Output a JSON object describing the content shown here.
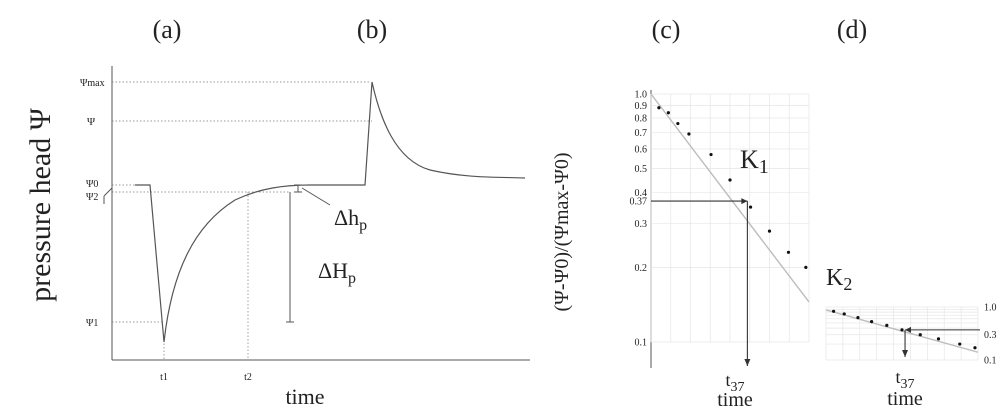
{
  "panel_labels": [
    "(a)",
    "(b)",
    "(c)",
    "(d)"
  ],
  "chart_data": [
    {
      "type": "line",
      "panel": "(a)-(b)",
      "ylabel": "pressure head Ψ",
      "xlabel": "time",
      "y_ticks": [
        "Ψmax",
        "Ψ",
        "Ψ0",
        "Ψ2",
        "Ψ1"
      ],
      "x_ticks": [
        "t1",
        "t2"
      ],
      "annotations": [
        "Δhp",
        "ΔHp"
      ]
    },
    {
      "type": "scatter",
      "panel": "(c)",
      "ylabel": "(Ψ-Ψ0)/(Ψmax-Ψ0)",
      "xlabel": "time",
      "y_scale": "log",
      "y_ticks": [
        1.0,
        0.9,
        0.8,
        0.7,
        0.6,
        0.5,
        0.4,
        0.37,
        0.3,
        0.2,
        0.1
      ],
      "ylim": [
        0.1,
        1.0
      ],
      "xlim": [
        0,
        100
      ],
      "label": "K1",
      "t_label": "t37",
      "marker_level": 0.37,
      "points": [
        {
          "x": 5,
          "y": 0.88
        },
        {
          "x": 11,
          "y": 0.84
        },
        {
          "x": 17,
          "y": 0.76
        },
        {
          "x": 24,
          "y": 0.69
        },
        {
          "x": 38,
          "y": 0.57
        },
        {
          "x": 50,
          "y": 0.45
        },
        {
          "x": 63,
          "y": 0.35
        },
        {
          "x": 75,
          "y": 0.28
        },
        {
          "x": 87,
          "y": 0.23
        },
        {
          "x": 98,
          "y": 0.2
        }
      ],
      "fit_line": [
        {
          "x": 0,
          "y": 1.0
        },
        {
          "x": 100,
          "y": 0.145
        }
      ],
      "t37_x": 61
    },
    {
      "type": "scatter",
      "panel": "(d)",
      "xlabel": "time",
      "y_scale": "log",
      "y_ticks": [
        1.0,
        0.3,
        0.1
      ],
      "ylim": [
        0.1,
        1.0
      ],
      "xlim": [
        0,
        100
      ],
      "label": "K2",
      "t_label": "t37",
      "marker_level": 0.37,
      "points": [
        {
          "x": 5,
          "y": 0.83
        },
        {
          "x": 12,
          "y": 0.74
        },
        {
          "x": 21,
          "y": 0.63
        },
        {
          "x": 30,
          "y": 0.53
        },
        {
          "x": 40,
          "y": 0.45
        },
        {
          "x": 50,
          "y": 0.37
        },
        {
          "x": 62,
          "y": 0.3
        },
        {
          "x": 74,
          "y": 0.25
        },
        {
          "x": 88,
          "y": 0.2
        },
        {
          "x": 98,
          "y": 0.17
        }
      ],
      "fit_line": [
        {
          "x": 0,
          "y": 0.88
        },
        {
          "x": 100,
          "y": 0.14
        }
      ],
      "t37_x": 52
    }
  ]
}
